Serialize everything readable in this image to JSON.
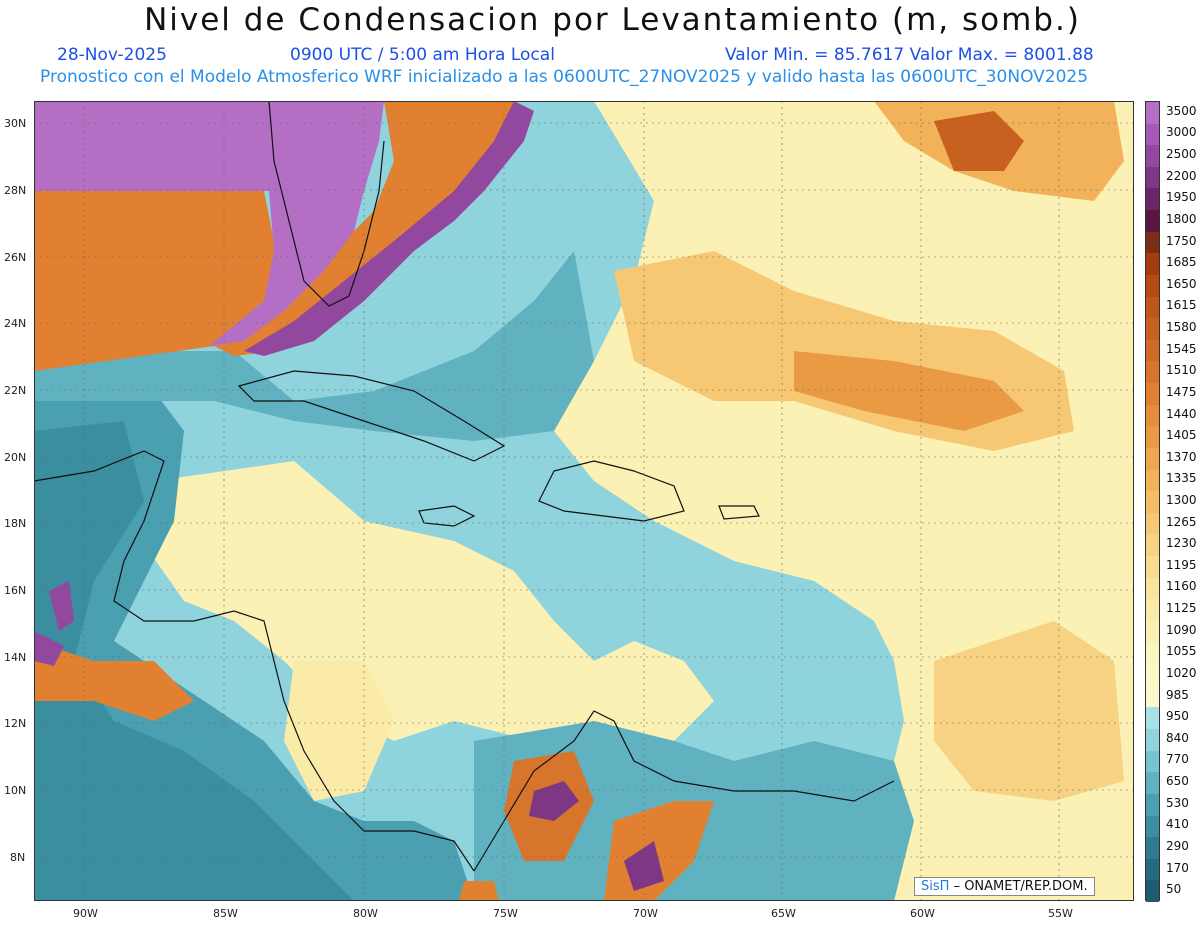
{
  "header": {
    "title": "Nivel de Condensacion por Levantamiento (m, somb.)",
    "date": "28-Nov-2025",
    "time": "0900 UTC / 5:00 am Hora Local",
    "valrange": "Valor Min. = 85.7617  Valor Max. = 8001.88",
    "model": "Pronostico con el Modelo Atmosferico WRF inicializado a las 0600UTC_27NOV2025 y valido hasta las  0600UTC_30NOV2025"
  },
  "axes": {
    "lon_labels": [
      "90W",
      "85W",
      "80W",
      "75W",
      "70W",
      "65W",
      "60W",
      "55W"
    ],
    "lat_labels": [
      "30N",
      "28N",
      "26N",
      "24N",
      "22N",
      "20N",
      "18N",
      "16N",
      "14N",
      "12N",
      "10N",
      "8N"
    ]
  },
  "colorbar": {
    "labels": [
      "3500",
      "3000",
      "2500",
      "2200",
      "1950",
      "1800",
      "1750",
      "1685",
      "1650",
      "1615",
      "1580",
      "1545",
      "1510",
      "1475",
      "1440",
      "1405",
      "1370",
      "1335",
      "1300",
      "1265",
      "1230",
      "1195",
      "1160",
      "1125",
      "1090",
      "1055",
      "1020",
      "985",
      "950",
      "840",
      "770",
      "650",
      "530",
      "410",
      "290",
      "170",
      "50"
    ],
    "colors": [
      "#b46fc4",
      "#a55ab8",
      "#93489f",
      "#7d3785",
      "#6a2567",
      "#5a1640",
      "#7a2f14",
      "#a33d10",
      "#b64b12",
      "#c0571a",
      "#c86020",
      "#d06a26",
      "#d8752c",
      "#e08030",
      "#e68e3a",
      "#eb9a44",
      "#efa64e",
      "#f2b25a",
      "#f4bd66",
      "#f6c874",
      "#f7d282",
      "#f8dc90",
      "#f9e49c",
      "#faeca8",
      "#fbf1b4",
      "#fbf5bf",
      "#fbf8c8",
      "#faf8cc",
      "#a8e2e6",
      "#8fd3dc",
      "#77c3cf",
      "#60b2c1",
      "#4a9fb1",
      "#3b8da0",
      "#2f7a90",
      "#266a80",
      "#1e5a70"
    ]
  },
  "credit": {
    "brand": "SisΠ",
    "text": "– ONAMET/REP.DOM."
  }
}
